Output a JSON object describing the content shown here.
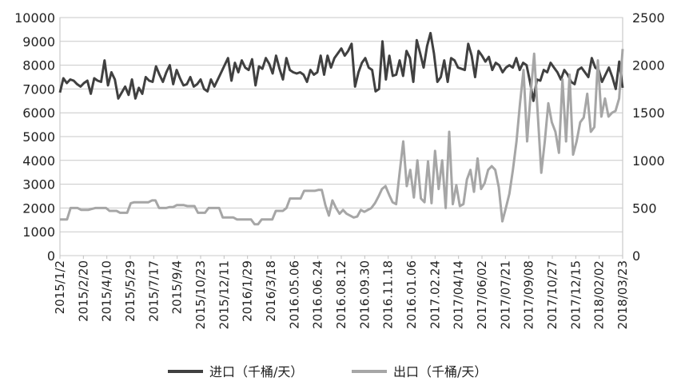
{
  "chart_data": {
    "type": "line",
    "title": "",
    "xlabel": "",
    "ylabel": "",
    "y_left": {
      "min": 0,
      "max": 10000,
      "ticks": [
        "0",
        "1000",
        "2000",
        "3000",
        "4000",
        "5000",
        "6000",
        "7000",
        "8000",
        "9000",
        "10000"
      ]
    },
    "y_right": {
      "min": 0,
      "max": 2500,
      "ticks": [
        "0",
        "500",
        "1000",
        "1500",
        "2000",
        "2500"
      ]
    },
    "x_tick_labels": [
      "2015/1/2",
      "2015/2/20",
      "2015/4/10",
      "2015/5/29",
      "2015/7/17",
      "2015/9/4",
      "2015/10/23",
      "2015/12/11",
      "2016/1/29",
      "2016/3/18",
      "2016.05.06",
      "2016.06.24",
      "2016.08.12",
      "2016.09.30",
      "2016.11.18",
      "2016.01.06",
      "2017.02.24",
      "2017/04/14",
      "2017/06/02",
      "2017/07/21",
      "2017/09/08",
      "2017/10/27",
      "2017/12/15",
      "2018/02/02",
      "2018/03/23"
    ],
    "grid": true,
    "legend_position": "bottom",
    "series": [
      {
        "name": "进口（千桶/天）",
        "axis": "left",
        "color": "#404040",
        "values": [
          6850,
          7450,
          7250,
          7400,
          7350,
          7200,
          7100,
          7250,
          7350,
          6800,
          7450,
          7350,
          7300,
          8200,
          7150,
          7700,
          7400,
          6600,
          6850,
          7100,
          6750,
          7400,
          6600,
          7050,
          6800,
          7500,
          7350,
          7300,
          7950,
          7600,
          7300,
          7700,
          8000,
          7200,
          7800,
          7450,
          7150,
          7200,
          7500,
          7100,
          7200,
          7400,
          7000,
          6900,
          7400,
          7100,
          7400,
          7700,
          8000,
          8300,
          7350,
          8100,
          7700,
          8200,
          7900,
          7800,
          8250,
          7150,
          7950,
          7850,
          8300,
          8050,
          7650,
          8400,
          7850,
          7400,
          8300,
          7800,
          7700,
          7650,
          7700,
          7600,
          7300,
          7800,
          7600,
          7700,
          8400,
          7600,
          8400,
          7900,
          8300,
          8500,
          8700,
          8400,
          8600,
          8900,
          7100,
          7700,
          8100,
          8300,
          7900,
          7800,
          6900,
          7000,
          9000,
          7400,
          8400,
          7550,
          7600,
          8200,
          7550,
          8600,
          8300,
          7300,
          9050,
          8500,
          7900,
          8800,
          9350,
          8500,
          7300,
          7500,
          8200,
          7300,
          8300,
          8200,
          7900,
          7850,
          7800,
          8900,
          8400,
          7500,
          8600,
          8400,
          8150,
          8350,
          7800,
          8100,
          8000,
          7700,
          7900,
          8000,
          7900,
          8300,
          7800,
          8100,
          8000,
          7300,
          6500,
          7400,
          7350,
          7800,
          7700,
          8100,
          7900,
          7700,
          7400,
          7800,
          7600,
          7300,
          7200,
          7800,
          7900,
          7700,
          7500,
          8300,
          7900,
          7800,
          7300,
          7600,
          7900,
          7500,
          7000,
          8150,
          7050
        ]
      },
      {
        "name": "出口（千桶/天）",
        "axis": "right",
        "color": "#a6a6a6",
        "values": [
          380,
          380,
          380,
          500,
          500,
          500,
          480,
          480,
          480,
          490,
          500,
          500,
          500,
          500,
          470,
          470,
          470,
          450,
          450,
          450,
          550,
          560,
          560,
          560,
          560,
          560,
          580,
          580,
          500,
          500,
          500,
          510,
          510,
          530,
          530,
          530,
          520,
          520,
          520,
          450,
          450,
          450,
          500,
          500,
          500,
          500,
          400,
          400,
          400,
          400,
          380,
          380,
          380,
          380,
          380,
          330,
          330,
          380,
          380,
          380,
          380,
          470,
          470,
          470,
          500,
          600,
          600,
          600,
          600,
          680,
          680,
          680,
          680,
          690,
          690,
          530,
          420,
          580,
          500,
          440,
          480,
          440,
          420,
          400,
          410,
          480,
          460,
          480,
          500,
          550,
          620,
          700,
          730,
          640,
          560,
          540,
          880,
          1200,
          730,
          900,
          610,
          1000,
          600,
          560,
          990,
          550,
          1100,
          700,
          1000,
          500,
          1300,
          540,
          740,
          520,
          540,
          800,
          900,
          670,
          1020,
          700,
          760,
          900,
          940,
          900,
          720,
          360,
          500,
          650,
          900,
          1200,
          1600,
          1950,
          1200,
          1700,
          2120,
          1500,
          870,
          1200,
          1600,
          1400,
          1300,
          1080,
          1850,
          1200,
          1900,
          1060,
          1200,
          1400,
          1450,
          1700,
          1300,
          1350,
          2050,
          1460,
          1650,
          1460,
          1500,
          1520,
          1650,
          2170
        ]
      }
    ]
  }
}
